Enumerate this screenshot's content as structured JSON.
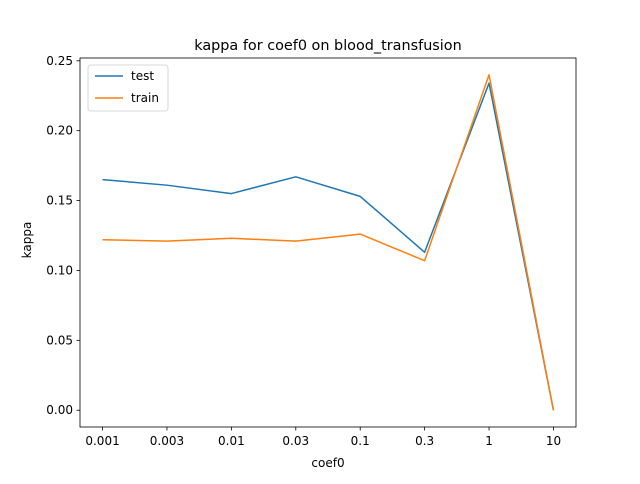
{
  "chart_data": {
    "type": "line",
    "title": "kappa for coef0 on  blood_transfusion",
    "xlabel": "coef0",
    "ylabel": "kappa",
    "categories": [
      "0.001",
      "0.003",
      "0.01",
      "0.03",
      "0.1",
      "0.3",
      "1",
      "10"
    ],
    "y_ticks": [
      "0.00",
      "0.05",
      "0.10",
      "0.15",
      "0.20",
      "0.25"
    ],
    "y_tick_values": [
      0.0,
      0.05,
      0.1,
      0.15,
      0.2,
      0.25
    ],
    "ylim": [
      -0.012,
      0.252
    ],
    "grid": false,
    "legend_position": "upper-left",
    "series": [
      {
        "name": "test",
        "color": "#1f77b4",
        "values": [
          0.165,
          0.161,
          0.155,
          0.167,
          0.153,
          0.113,
          0.234,
          0.0
        ]
      },
      {
        "name": "train",
        "color": "#ff7f0e",
        "values": [
          0.122,
          0.121,
          0.123,
          0.121,
          0.126,
          0.107,
          0.24,
          0.0
        ]
      }
    ]
  }
}
